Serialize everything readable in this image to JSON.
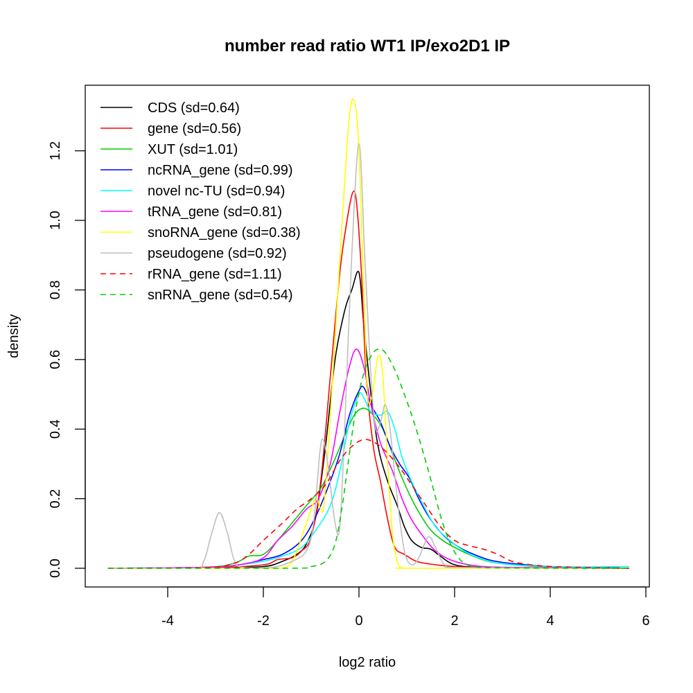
{
  "chart_data": {
    "type": "line",
    "title": "number read ratio WT1 IP/exo2D1 IP",
    "xlabel": "log2 ratio",
    "ylabel": "density",
    "xlim": [
      -5.5,
      6.0
    ],
    "ylim": [
      -0.05,
      1.4
    ],
    "xticks": [
      -4,
      -2,
      0,
      2,
      4,
      6
    ],
    "xtick_labels": [
      "-4",
      "-2",
      "0",
      "2",
      "4",
      "6"
    ],
    "yticks": [
      0.0,
      0.2,
      0.4,
      0.6,
      0.8,
      1.0,
      1.2
    ],
    "ytick_labels": [
      "0.0",
      "0.2",
      "0.4",
      "0.6",
      "0.8",
      "1.0",
      "1.2"
    ],
    "grid": false,
    "legend_position": "top-left",
    "series": [
      {
        "name": "CDS (sd=0.64)",
        "color": "#000000",
        "dash": "solid",
        "points": [
          [
            -5.25,
            0
          ],
          [
            -3,
            0.002
          ],
          [
            -2,
            0.005
          ],
          [
            -1.6,
            0.02
          ],
          [
            -1.3,
            0.04
          ],
          [
            -1.1,
            0.07
          ],
          [
            -0.9,
            0.15
          ],
          [
            -0.7,
            0.35
          ],
          [
            -0.5,
            0.6
          ],
          [
            -0.3,
            0.74
          ],
          [
            -0.15,
            0.8
          ],
          [
            0,
            0.85
          ],
          [
            0.1,
            0.7
          ],
          [
            0.25,
            0.5
          ],
          [
            0.4,
            0.35
          ],
          [
            0.6,
            0.25
          ],
          [
            0.8,
            0.18
          ],
          [
            0.95,
            0.12
          ],
          [
            1.1,
            0.08
          ],
          [
            1.3,
            0.06
          ],
          [
            1.5,
            0.055
          ],
          [
            1.7,
            0.035
          ],
          [
            2.0,
            0.01
          ],
          [
            2.5,
            0.003
          ],
          [
            3.5,
            0.001
          ],
          [
            5.65,
            0
          ]
        ]
      },
      {
        "name": "gene (sd=0.56)",
        "color": "#ff0000",
        "dash": "solid",
        "points": [
          [
            -5.25,
            0
          ],
          [
            -3,
            0.002
          ],
          [
            -2,
            0.01
          ],
          [
            -1.7,
            0.025
          ],
          [
            -1.4,
            0.03
          ],
          [
            -1.2,
            0.05
          ],
          [
            -1.0,
            0.09
          ],
          [
            -0.8,
            0.25
          ],
          [
            -0.6,
            0.55
          ],
          [
            -0.4,
            0.85
          ],
          [
            -0.25,
            1.0
          ],
          [
            -0.13,
            1.08
          ],
          [
            -0.05,
            1.05
          ],
          [
            0.05,
            0.85
          ],
          [
            0.15,
            0.55
          ],
          [
            0.3,
            0.35
          ],
          [
            0.45,
            0.25
          ],
          [
            0.6,
            0.14
          ],
          [
            0.75,
            0.06
          ],
          [
            0.95,
            0.04
          ],
          [
            1.2,
            0.02
          ],
          [
            1.5,
            0.012
          ],
          [
            2,
            0.005
          ],
          [
            3,
            0.001
          ],
          [
            5.65,
            0
          ]
        ]
      },
      {
        "name": "XUT (sd=1.01)",
        "color": "#00cd00",
        "dash": "solid",
        "points": [
          [
            -5.25,
            0
          ],
          [
            -3.2,
            0.003
          ],
          [
            -2.6,
            0.015
          ],
          [
            -2.3,
            0.035
          ],
          [
            -2.0,
            0.04
          ],
          [
            -1.7,
            0.08
          ],
          [
            -1.4,
            0.13
          ],
          [
            -1.1,
            0.18
          ],
          [
            -0.8,
            0.23
          ],
          [
            -0.55,
            0.3
          ],
          [
            -0.3,
            0.38
          ],
          [
            -0.1,
            0.44
          ],
          [
            0.1,
            0.46
          ],
          [
            0.3,
            0.44
          ],
          [
            0.5,
            0.4
          ],
          [
            0.7,
            0.33
          ],
          [
            0.9,
            0.26
          ],
          [
            1.1,
            0.2
          ],
          [
            1.3,
            0.15
          ],
          [
            1.5,
            0.11
          ],
          [
            1.75,
            0.08
          ],
          [
            2.0,
            0.06
          ],
          [
            2.3,
            0.04
          ],
          [
            2.7,
            0.02
          ],
          [
            3.2,
            0.01
          ],
          [
            4,
            0.004
          ],
          [
            5.65,
            0
          ]
        ]
      },
      {
        "name": "ncRNA_gene (sd=0.99)",
        "color": "#0000ff",
        "dash": "solid",
        "points": [
          [
            -5.25,
            0
          ],
          [
            -3.2,
            0.003
          ],
          [
            -2.5,
            0.01
          ],
          [
            -2.0,
            0.025
          ],
          [
            -1.6,
            0.04
          ],
          [
            -1.2,
            0.08
          ],
          [
            -0.9,
            0.15
          ],
          [
            -0.6,
            0.25
          ],
          [
            -0.4,
            0.33
          ],
          [
            -0.2,
            0.44
          ],
          [
            0.0,
            0.51
          ],
          [
            0.1,
            0.52
          ],
          [
            0.25,
            0.47
          ],
          [
            0.45,
            0.42
          ],
          [
            0.65,
            0.35
          ],
          [
            0.85,
            0.3
          ],
          [
            1.05,
            0.26
          ],
          [
            1.25,
            0.2
          ],
          [
            1.5,
            0.14
          ],
          [
            1.8,
            0.09
          ],
          [
            2.1,
            0.06
          ],
          [
            2.4,
            0.04
          ],
          [
            2.7,
            0.025
          ],
          [
            3.0,
            0.017
          ],
          [
            3.5,
            0.01
          ],
          [
            4.0,
            0.005
          ],
          [
            5.0,
            0.002
          ],
          [
            5.65,
            0
          ]
        ]
      },
      {
        "name": "novel nc-TU (sd=0.94)",
        "color": "#00ffff",
        "dash": "solid",
        "points": [
          [
            -5.25,
            0
          ],
          [
            -3.2,
            0.003
          ],
          [
            -2.5,
            0.01
          ],
          [
            -2.0,
            0.02
          ],
          [
            -1.6,
            0.035
          ],
          [
            -1.2,
            0.06
          ],
          [
            -0.9,
            0.11
          ],
          [
            -0.6,
            0.18
          ],
          [
            -0.4,
            0.28
          ],
          [
            -0.2,
            0.42
          ],
          [
            0.0,
            0.5
          ],
          [
            0.1,
            0.49
          ],
          [
            0.25,
            0.45
          ],
          [
            0.45,
            0.44
          ],
          [
            0.6,
            0.45
          ],
          [
            0.75,
            0.4
          ],
          [
            0.9,
            0.32
          ],
          [
            1.1,
            0.25
          ],
          [
            1.35,
            0.18
          ],
          [
            1.6,
            0.12
          ],
          [
            1.9,
            0.08
          ],
          [
            2.2,
            0.05
          ],
          [
            2.5,
            0.03
          ],
          [
            2.9,
            0.015
          ],
          [
            3.5,
            0.008
          ],
          [
            4.5,
            0.004
          ],
          [
            5.65,
            0.005
          ]
        ]
      },
      {
        "name": "tRNA_gene (sd=0.81)",
        "color": "#ff00ff",
        "dash": "solid",
        "points": [
          [
            -5.25,
            0
          ],
          [
            -3.2,
            0.003
          ],
          [
            -2.5,
            0.01
          ],
          [
            -2.0,
            0.03
          ],
          [
            -1.7,
            0.08
          ],
          [
            -1.4,
            0.12
          ],
          [
            -1.1,
            0.17
          ],
          [
            -0.85,
            0.2
          ],
          [
            -0.6,
            0.3
          ],
          [
            -0.4,
            0.45
          ],
          [
            -0.2,
            0.58
          ],
          [
            -0.05,
            0.63
          ],
          [
            0.1,
            0.58
          ],
          [
            0.25,
            0.47
          ],
          [
            0.45,
            0.36
          ],
          [
            0.7,
            0.28
          ],
          [
            0.9,
            0.2
          ],
          [
            1.1,
            0.14
          ],
          [
            1.35,
            0.09
          ],
          [
            1.6,
            0.05
          ],
          [
            1.9,
            0.025
          ],
          [
            2.3,
            0.01
          ],
          [
            3.0,
            0.003
          ],
          [
            5.65,
            0
          ]
        ]
      },
      {
        "name": "snoRNA_gene (sd=0.38)",
        "color": "#ffff00",
        "dash": "solid",
        "points": [
          [
            -5.25,
            0
          ],
          [
            -2,
            0
          ],
          [
            -1.5,
            0.005
          ],
          [
            -1.3,
            0.05
          ],
          [
            -1.1,
            0.13
          ],
          [
            -0.9,
            0.2
          ],
          [
            -0.8,
            0.17
          ],
          [
            -0.72,
            0.2
          ],
          [
            -0.55,
            0.55
          ],
          [
            -0.35,
            1.0
          ],
          [
            -0.2,
            1.3
          ],
          [
            -0.09,
            1.34
          ],
          [
            0.0,
            1.2
          ],
          [
            0.1,
            0.8
          ],
          [
            0.18,
            0.5
          ],
          [
            0.28,
            0.5
          ],
          [
            0.4,
            0.61
          ],
          [
            0.5,
            0.55
          ],
          [
            0.6,
            0.3
          ],
          [
            0.7,
            0.1
          ],
          [
            0.8,
            0.02
          ],
          [
            0.9,
            0.002
          ],
          [
            1.2,
            0
          ],
          [
            5.65,
            0
          ]
        ]
      },
      {
        "name": "pseudogene (sd=0.92)",
        "color": "#bebebe",
        "dash": "solid",
        "points": [
          [
            -5.25,
            0
          ],
          [
            -3.5,
            0
          ],
          [
            -3.25,
            0.02
          ],
          [
            -3.1,
            0.09
          ],
          [
            -2.92,
            0.16
          ],
          [
            -2.75,
            0.1
          ],
          [
            -2.6,
            0.02
          ],
          [
            -2.4,
            0.002
          ],
          [
            -1.8,
            0.003
          ],
          [
            -1.4,
            0.02
          ],
          [
            -1.1,
            0.05
          ],
          [
            -0.95,
            0.13
          ],
          [
            -0.82,
            0.33
          ],
          [
            -0.75,
            0.37
          ],
          [
            -0.65,
            0.3
          ],
          [
            -0.5,
            0.13
          ],
          [
            -0.4,
            0.12
          ],
          [
            -0.3,
            0.4
          ],
          [
            -0.15,
            0.9
          ],
          [
            0.0,
            1.22
          ],
          [
            0.12,
            0.9
          ],
          [
            0.25,
            0.55
          ],
          [
            0.35,
            0.4
          ],
          [
            0.45,
            0.42
          ],
          [
            0.55,
            0.47
          ],
          [
            0.65,
            0.4
          ],
          [
            0.8,
            0.2
          ],
          [
            0.95,
            0.05
          ],
          [
            1.1,
            0.01
          ],
          [
            1.25,
            0.03
          ],
          [
            1.45,
            0.09
          ],
          [
            1.6,
            0.06
          ],
          [
            1.8,
            0.01
          ],
          [
            2.2,
            0.002
          ],
          [
            5.65,
            0
          ]
        ]
      },
      {
        "name": "rRNA_gene (sd=1.11)",
        "color": "#ff0000",
        "dash": "dashed",
        "points": [
          [
            -5.25,
            0
          ],
          [
            -3.2,
            0.002
          ],
          [
            -2.6,
            0.015
          ],
          [
            -2.3,
            0.04
          ],
          [
            -2.0,
            0.08
          ],
          [
            -1.6,
            0.13
          ],
          [
            -1.3,
            0.17
          ],
          [
            -1.0,
            0.2
          ],
          [
            -0.7,
            0.24
          ],
          [
            -0.4,
            0.31
          ],
          [
            -0.15,
            0.35
          ],
          [
            0.1,
            0.37
          ],
          [
            0.35,
            0.36
          ],
          [
            0.6,
            0.33
          ],
          [
            0.85,
            0.29
          ],
          [
            1.1,
            0.24
          ],
          [
            1.4,
            0.18
          ],
          [
            1.7,
            0.12
          ],
          [
            2.0,
            0.08
          ],
          [
            2.3,
            0.065
          ],
          [
            2.6,
            0.055
          ],
          [
            2.9,
            0.04
          ],
          [
            3.2,
            0.02
          ],
          [
            3.6,
            0.01
          ],
          [
            4.2,
            0.004
          ],
          [
            5.65,
            0
          ]
        ]
      },
      {
        "name": "snRNA_gene (sd=0.54)",
        "color": "#00cd00",
        "dash": "dashed",
        "points": [
          [
            -5.25,
            0
          ],
          [
            -1.5,
            0
          ],
          [
            -1.0,
            0.005
          ],
          [
            -0.7,
            0.02
          ],
          [
            -0.5,
            0.07
          ],
          [
            -0.35,
            0.18
          ],
          [
            -0.2,
            0.33
          ],
          [
            -0.05,
            0.47
          ],
          [
            0.1,
            0.56
          ],
          [
            0.25,
            0.61
          ],
          [
            0.4,
            0.63
          ],
          [
            0.55,
            0.62
          ],
          [
            0.75,
            0.57
          ],
          [
            0.95,
            0.5
          ],
          [
            1.15,
            0.42
          ],
          [
            1.35,
            0.33
          ],
          [
            1.55,
            0.23
          ],
          [
            1.75,
            0.13
          ],
          [
            1.95,
            0.06
          ],
          [
            2.15,
            0.02
          ],
          [
            2.4,
            0.005
          ],
          [
            3,
            0.001
          ],
          [
            5.65,
            0
          ]
        ]
      }
    ]
  }
}
